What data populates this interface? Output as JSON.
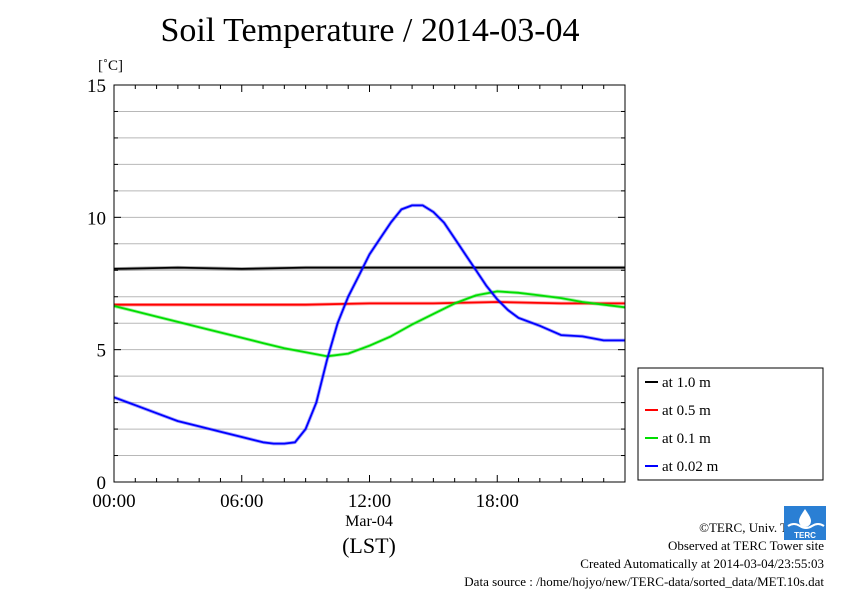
{
  "chart_data": {
    "type": "line",
    "title": "Soil Temperature / 2014-03-04",
    "y_unit_label": "[˚C]",
    "xlabel": "(LST)",
    "x_date_label": "Mar-04",
    "x_tick_labels": [
      "00:00",
      "06:00",
      "12:00",
      "18:00"
    ],
    "x_ticks_hours": [
      0,
      6,
      12,
      18
    ],
    "xlim_hours": [
      0,
      24
    ],
    "y_tick_labels": [
      "0",
      "5",
      "10",
      "15"
    ],
    "y_ticks": [
      0,
      5,
      10,
      15
    ],
    "ylim": [
      0,
      15
    ],
    "grid": true,
    "legend_position": "right",
    "series": [
      {
        "name": "at 1.0 m",
        "color": "#000000",
        "x_hours": [
          0,
          3,
          6,
          9,
          12,
          15,
          18,
          21,
          24
        ],
        "values": [
          8.05,
          8.1,
          8.05,
          8.1,
          8.1,
          8.1,
          8.1,
          8.1,
          8.1
        ]
      },
      {
        "name": "at 0.5 m",
        "color": "#ff0000",
        "x_hours": [
          0,
          3,
          6,
          9,
          12,
          15,
          18,
          21,
          24
        ],
        "values": [
          6.7,
          6.7,
          6.7,
          6.7,
          6.75,
          6.75,
          6.8,
          6.75,
          6.75
        ]
      },
      {
        "name": "at 0.1 m",
        "color": "#00dd00",
        "x_hours": [
          0,
          1,
          2,
          3,
          4,
          5,
          6,
          7,
          8,
          9,
          10,
          11,
          12,
          13,
          14,
          15,
          16,
          17,
          18,
          19,
          20,
          21,
          22,
          23,
          24
        ],
        "values": [
          6.65,
          6.45,
          6.25,
          6.05,
          5.85,
          5.65,
          5.45,
          5.25,
          5.05,
          4.9,
          4.75,
          4.85,
          5.15,
          5.5,
          5.95,
          6.35,
          6.75,
          7.05,
          7.2,
          7.15,
          7.05,
          6.95,
          6.8,
          6.7,
          6.6
        ]
      },
      {
        "name": "at 0.02 m",
        "color": "#0000ff",
        "x_hours": [
          0,
          1,
          2,
          3,
          4,
          5,
          6,
          7,
          7.5,
          8,
          8.5,
          9,
          9.5,
          10,
          10.5,
          11,
          11.5,
          12,
          12.5,
          13,
          13.5,
          14,
          14.5,
          15,
          15.5,
          16,
          16.5,
          17,
          17.5,
          18,
          18.5,
          19,
          20,
          21,
          22,
          23,
          24
        ],
        "values": [
          3.2,
          2.9,
          2.6,
          2.3,
          2.1,
          1.9,
          1.7,
          1.5,
          1.45,
          1.45,
          1.5,
          2.0,
          3.0,
          4.6,
          6.0,
          7.0,
          7.8,
          8.6,
          9.2,
          9.8,
          10.3,
          10.45,
          10.45,
          10.2,
          9.8,
          9.2,
          8.6,
          8.0,
          7.4,
          6.9,
          6.5,
          6.2,
          5.9,
          5.55,
          5.5,
          5.35,
          5.35
        ]
      }
    ]
  },
  "credits": {
    "copyright": "©TERC, Univ. Tsukuba",
    "observed": "Observed at TERC Tower site",
    "created": "Created Automatically at 2014-03-04/23:55:03",
    "source": "Data source : /home/hojyo/new/TERC-data/sorted_data/MET.10s.dat",
    "logo_text": "TERC"
  }
}
